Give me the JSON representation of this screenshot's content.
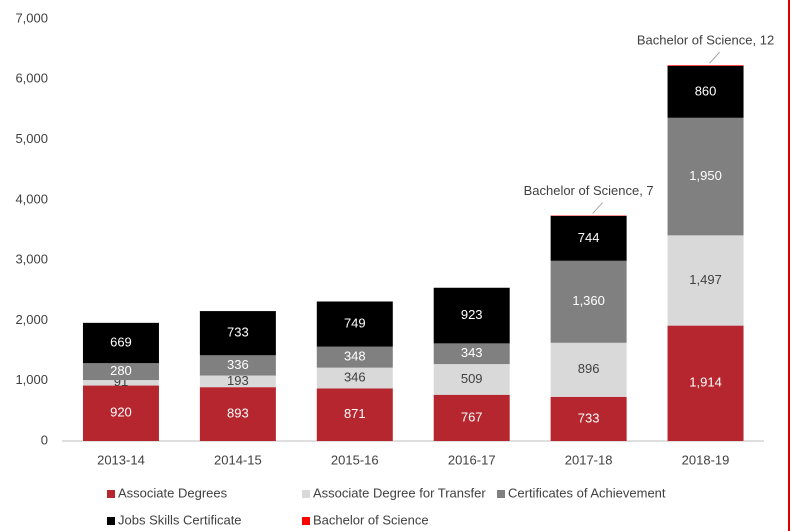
{
  "chart_data": {
    "type": "stacked_bar",
    "categories": [
      "2013-14",
      "2014-15",
      "2015-16",
      "2016-17",
      "2017-18",
      "2018-19"
    ],
    "series": [
      {
        "name": "Associate Degrees",
        "color": "#b5262e",
        "label_color": "#ffffff",
        "values": [
          920,
          893,
          871,
          767,
          733,
          1914
        ],
        "value_labels": [
          "920",
          "893",
          "871",
          "767",
          "733",
          "1,914"
        ]
      },
      {
        "name": "Associate Degree for Transfer",
        "color": "#d9d9d9",
        "label_color": "#404040",
        "values": [
          91,
          193,
          346,
          509,
          896,
          1497
        ],
        "value_labels": [
          "91",
          "193",
          "346",
          "509",
          "896",
          "1,497"
        ]
      },
      {
        "name": "Certificates of Achievement",
        "color": "#808080",
        "label_color": "#ffffff",
        "values": [
          280,
          336,
          348,
          343,
          1360,
          1950
        ],
        "value_labels": [
          "280",
          "336",
          "348",
          "343",
          "1,360",
          "1,950"
        ]
      },
      {
        "name": "Jobs Skills Certificate",
        "color": "#000000",
        "label_color": "#ffffff",
        "values": [
          669,
          733,
          749,
          923,
          744,
          860
        ],
        "value_labels": [
          "669",
          "733",
          "749",
          "923",
          "744",
          "860"
        ]
      },
      {
        "name": "Bachelor of Science",
        "color": "#ff0000",
        "label_color": "#404040",
        "values": [
          null,
          null,
          null,
          null,
          7,
          12
        ],
        "value_labels": [
          null,
          null,
          null,
          null,
          "Bachelor of Science, 7",
          "Bachelor of Science, 12"
        ]
      }
    ],
    "ylim": [
      0,
      7000
    ],
    "yticks": [
      0,
      {
        "value": 1000,
        "label": "1,000"
      },
      {
        "value": 2000,
        "label": "2,000"
      },
      {
        "value": 3000,
        "label": "3,000"
      },
      {
        "value": 4000,
        "label": "4,000"
      },
      {
        "value": 5000,
        "label": "5,000"
      },
      {
        "value": 6000,
        "label": "6,000"
      },
      {
        "value": 7000,
        "label": "7,000"
      }
    ],
    "grid": false,
    "legend": "bottom"
  }
}
